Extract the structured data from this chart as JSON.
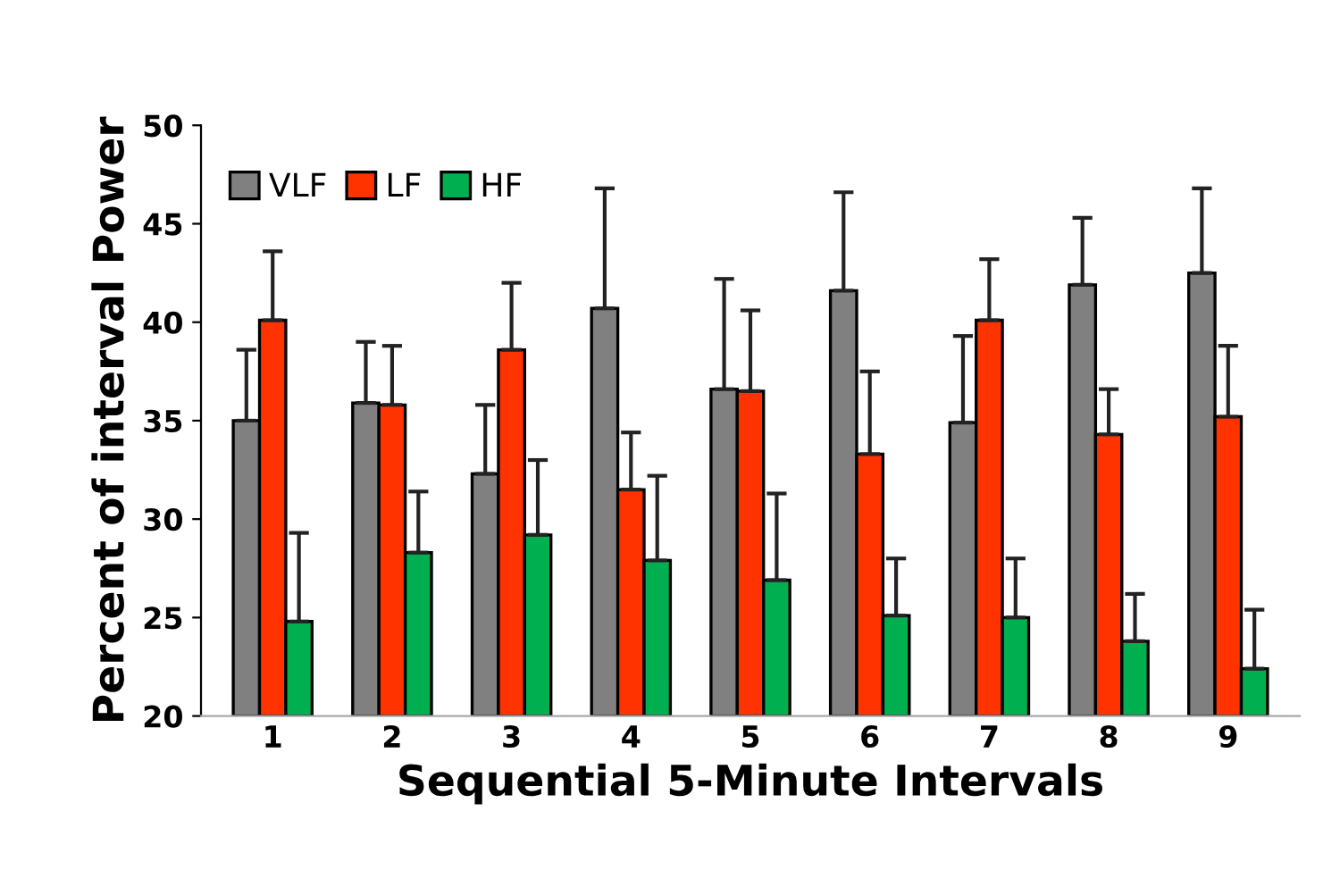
{
  "chart_data": {
    "type": "bar",
    "xlabel": "Sequential 5-Minute Intervals",
    "ylabel": "Percent of interval Power",
    "categories": [
      "1",
      "2",
      "3",
      "4",
      "5",
      "6",
      "7",
      "8",
      "9"
    ],
    "series": [
      {
        "name": "VLF",
        "color": "#808080",
        "values": [
          35.0,
          35.9,
          32.3,
          40.7,
          36.6,
          41.6,
          34.9,
          41.9,
          42.5
        ],
        "errors": [
          [
            35.0,
            38.6
          ],
          [
            35.9,
            39.0
          ],
          [
            32.3,
            35.8
          ],
          [
            40.7,
            46.8
          ],
          [
            36.6,
            42.2
          ],
          [
            41.6,
            46.6
          ],
          [
            34.9,
            39.3
          ],
          [
            41.9,
            45.3
          ],
          [
            42.5,
            46.8
          ]
        ]
      },
      {
        "name": "LF",
        "color": "#ff3300",
        "values": [
          40.1,
          35.8,
          38.6,
          31.5,
          36.5,
          33.3,
          40.1,
          34.3,
          35.2
        ],
        "errors": [
          [
            40.1,
            43.6
          ],
          [
            35.8,
            38.8
          ],
          [
            38.6,
            42.0
          ],
          [
            31.5,
            34.4
          ],
          [
            36.5,
            40.6
          ],
          [
            33.3,
            37.5
          ],
          [
            40.1,
            43.2
          ],
          [
            34.3,
            36.6
          ],
          [
            35.2,
            38.8
          ]
        ]
      },
      {
        "name": "HF",
        "color": "#00b050",
        "values": [
          24.8,
          28.3,
          29.2,
          27.9,
          26.9,
          25.1,
          25.0,
          23.8,
          22.4
        ],
        "errors": [
          [
            24.8,
            29.3
          ],
          [
            28.3,
            31.4
          ],
          [
            29.2,
            33.0
          ],
          [
            27.9,
            32.2
          ],
          [
            26.9,
            31.3
          ],
          [
            25.1,
            28.0
          ],
          [
            25.0,
            28.0
          ],
          [
            23.8,
            26.2
          ],
          [
            22.4,
            25.4
          ]
        ]
      }
    ],
    "ylim": [
      20,
      50
    ],
    "yticks": [
      20,
      25,
      30,
      35,
      40,
      45,
      50
    ],
    "grid": false,
    "legend": "top left"
  }
}
